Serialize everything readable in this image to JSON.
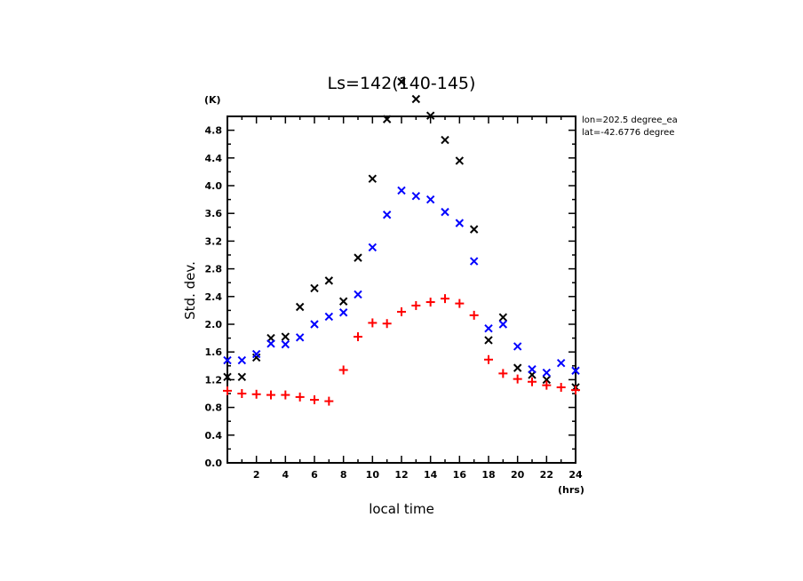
{
  "chart_data": {
    "type": "scatter",
    "title": "Ls=142(140-145)",
    "xlabel": "local time",
    "ylabel": "Std. dev.",
    "x_unit": "(hrs)",
    "y_unit": "(K)",
    "xlim": [
      0,
      24
    ],
    "ylim": [
      0,
      5.0
    ],
    "x_ticks": [
      2,
      4,
      6,
      8,
      10,
      12,
      14,
      16,
      18,
      20,
      22,
      24
    ],
    "x_minor_step": 1,
    "y_ticks": [
      "0.0",
      "0.4",
      "0.8",
      "1.2",
      "1.6",
      "2.0",
      "2.4",
      "2.8",
      "3.2",
      "3.6",
      "4.0",
      "4.4",
      "4.8"
    ],
    "y_minor_step": 0.2,
    "grid": false,
    "annotations": [
      "lon=202.5 degree_ea",
      "lat=-42.6776 degree"
    ],
    "x": [
      0,
      1,
      2,
      3,
      4,
      5,
      6,
      7,
      8,
      9,
      10,
      11,
      12,
      13,
      14,
      15,
      16,
      17,
      18,
      19,
      20,
      21,
      22,
      23,
      24
    ],
    "series": [
      {
        "name": "black",
        "marker": "x",
        "color": "#000000",
        "values": [
          1.24,
          1.24,
          1.52,
          1.8,
          1.82,
          2.25,
          2.52,
          2.63,
          2.33,
          2.96,
          4.1,
          4.96,
          5.5,
          5.25,
          5.01,
          4.66,
          4.36,
          3.37,
          1.77,
          2.1,
          1.37,
          1.27,
          1.2,
          null,
          1.09
        ]
      },
      {
        "name": "blue",
        "marker": "x",
        "color": "#0000ff",
        "values": [
          1.48,
          1.48,
          1.57,
          1.72,
          1.71,
          1.81,
          2.0,
          2.11,
          2.17,
          2.43,
          3.11,
          3.58,
          3.93,
          3.85,
          3.8,
          3.62,
          3.46,
          2.91,
          1.94,
          2.0,
          1.68,
          1.35,
          1.3,
          1.44,
          1.33
        ]
      },
      {
        "name": "red",
        "marker": "+",
        "color": "#ff0000",
        "values": [
          1.04,
          1.0,
          0.99,
          0.98,
          0.98,
          0.95,
          0.91,
          0.89,
          1.34,
          1.82,
          2.02,
          2.01,
          2.18,
          2.27,
          2.32,
          2.37,
          2.3,
          2.13,
          1.49,
          1.29,
          1.21,
          1.17,
          1.12,
          1.09,
          1.05
        ]
      }
    ]
  }
}
